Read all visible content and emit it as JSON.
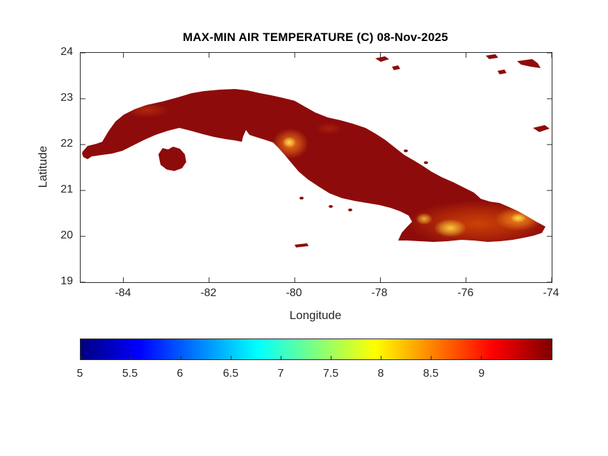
{
  "chart_data": {
    "type": "heatmap",
    "title": "MAX-MIN AIR TEMPERATURE (C) 08-Nov-2025",
    "xlabel": "Longitude",
    "ylabel": "Latitude",
    "xlim": [
      -85,
      -74
    ],
    "ylim": [
      19,
      24
    ],
    "xticks": [
      -84,
      -82,
      -80,
      -78,
      -76,
      -74
    ],
    "yticks": [
      24,
      23,
      22,
      21,
      20,
      19
    ],
    "grid": false,
    "region": "Cuba, Isla de la Juventud and nearby cays",
    "colormap": "jet",
    "base_value": 9.4,
    "base_color": "#8e0b0b",
    "colorbar": {
      "orientation": "horizontal",
      "position": "below-axes",
      "range": [
        5,
        9.71
      ],
      "ticks": [
        5,
        5.5,
        6,
        6.5,
        7,
        7.5,
        8,
        8.5,
        9
      ]
    },
    "values_summary": "Diurnal air-temperature range mostly 9-9.7 C (dark red) over the whole island; reduced values of 7.4-8.5 C (yellow-orange) over southeastern Cuba (Sierra Maestra and far-eastern highlands) and the Escambray mountains near Trinidad; faint reductions over western and north-central highlands.",
    "hotspots": [
      {
        "label": "Southeastern Cuba warm-anomaly band",
        "lon": -75.7,
        "lat": 20.28,
        "rx_deg": 1.7,
        "ry_deg": 0.5,
        "value": 8.5,
        "color": "#ff6f00",
        "opacity": 0.55
      },
      {
        "label": "Far-eastern highlands",
        "lon": -74.78,
        "lat": 20.38,
        "rx_deg": 0.55,
        "ry_deg": 0.26,
        "value": 8.0,
        "color": "#ff9a1e",
        "opacity": 0.85
      },
      {
        "label": "Far-eastern core",
        "lon": -74.78,
        "lat": 20.4,
        "rx_deg": 0.18,
        "ry_deg": 0.1,
        "value": 7.4,
        "color": "#ffe24d",
        "opacity": 0.9
      },
      {
        "label": "Sierra Maestra core",
        "lon": -76.37,
        "lat": 20.18,
        "rx_deg": 0.38,
        "ry_deg": 0.2,
        "value": 7.5,
        "color": "#ffd23e",
        "opacity": 0.95
      },
      {
        "label": "Sierra Maestra west",
        "lon": -76.98,
        "lat": 20.38,
        "rx_deg": 0.2,
        "ry_deg": 0.13,
        "value": 7.6,
        "color": "#ffca35",
        "opacity": 0.85
      },
      {
        "label": "Escambray mountains",
        "lon": -80.1,
        "lat": 22.02,
        "rx_deg": 0.42,
        "ry_deg": 0.33,
        "value": 7.9,
        "color": "#ff8c1a",
        "opacity": 0.85
      },
      {
        "label": "Escambray core",
        "lon": -80.13,
        "lat": 22.05,
        "rx_deg": 0.16,
        "ry_deg": 0.12,
        "value": 7.4,
        "color": "#ffe24d",
        "opacity": 0.95
      },
      {
        "label": "Western highlands",
        "lon": -83.45,
        "lat": 22.75,
        "rx_deg": 0.5,
        "ry_deg": 0.16,
        "value": 8.8,
        "color": "#e2520e",
        "opacity": 0.4
      },
      {
        "label": "North-central patch",
        "lon": -79.2,
        "lat": 22.35,
        "rx_deg": 0.3,
        "ry_deg": 0.13,
        "value": 8.9,
        "color": "#d8430c",
        "opacity": 0.35
      }
    ]
  }
}
